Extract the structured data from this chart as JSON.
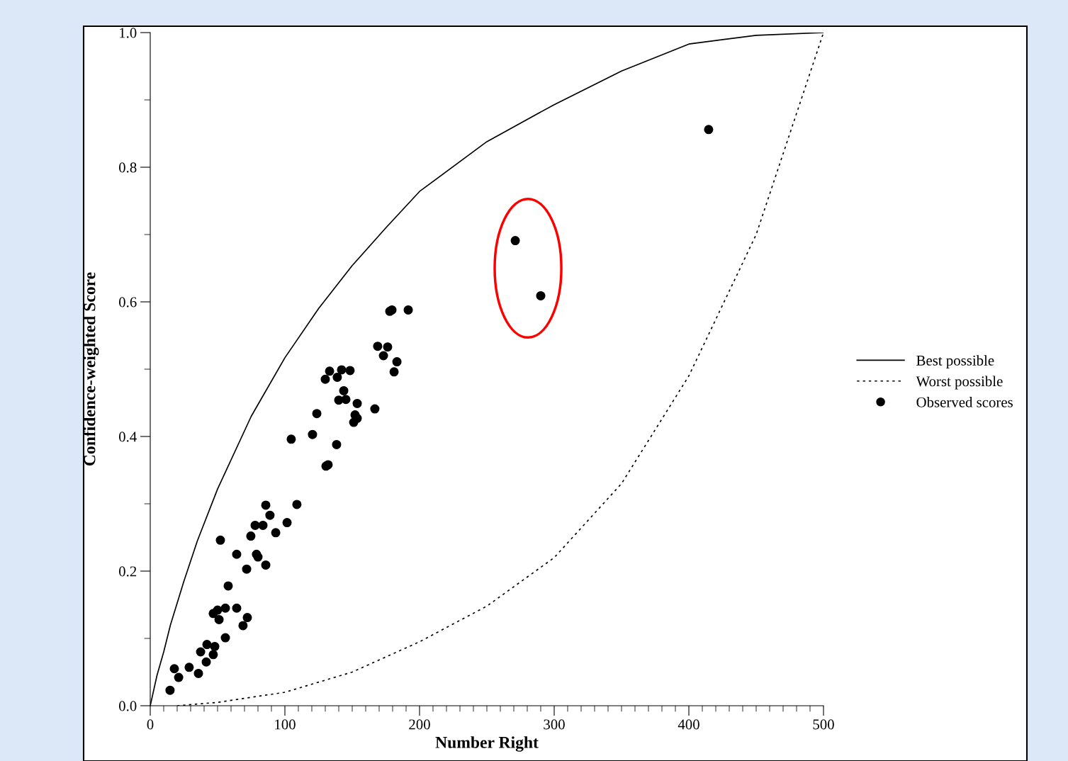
{
  "chart_data": {
    "type": "scatter",
    "xlabel": "Number Right",
    "ylabel": "Confidence-weighted Score",
    "xlim": [
      0,
      500
    ],
    "ylim": [
      0,
      1.0
    ],
    "xticks": [
      0,
      100,
      200,
      300,
      400,
      500
    ],
    "yticks": [
      {
        "value": 0,
        "label": "0.0"
      },
      {
        "value": 0.2,
        "label": "0.2"
      },
      {
        "value": 0.4,
        "label": "0.4"
      },
      {
        "value": 0.6,
        "label": "0.6"
      },
      {
        "value": 0.8,
        "label": "0.8"
      },
      {
        "value": 1.0,
        "label": "1.0"
      }
    ],
    "grid": false,
    "legend": "right",
    "series": [
      {
        "name": "Best possible",
        "type": "line",
        "color": "#000000",
        "line_style": "solid",
        "marker": "none",
        "x": [
          0,
          5,
          10,
          15,
          25,
          35,
          50,
          75,
          100,
          125,
          150,
          175,
          200,
          250,
          300,
          350,
          400,
          450,
          500
        ],
        "values": [
          0,
          0.045,
          0.08,
          0.12,
          0.185,
          0.245,
          0.322,
          0.43,
          0.517,
          0.59,
          0.654,
          0.71,
          0.764,
          0.838,
          0.893,
          0.943,
          0.983,
          0.996,
          1.0
        ]
      },
      {
        "name": "Worst possible",
        "type": "line",
        "color": "#000000",
        "line_style": "dotted",
        "marker": "none",
        "x": [
          20,
          50,
          100,
          150,
          200,
          250,
          300,
          350,
          400,
          450,
          500
        ],
        "values": [
          0,
          0.005,
          0.02,
          0.05,
          0.095,
          0.148,
          0.22,
          0.33,
          0.49,
          0.7,
          1.0
        ]
      },
      {
        "name": "Observed scores",
        "color": "#000000",
        "marker": "circle",
        "x": [
          14.7,
          17.9,
          21.1,
          28.9,
          35.8,
          37.4,
          41.6,
          42.1,
          46.8,
          47.9,
          46.8,
          50.0,
          51.1,
          52.1,
          55.8,
          55.8,
          57.9,
          64.2,
          64.2,
          68.9,
          71.6,
          72.1,
          74.7,
          77.9,
          78.9,
          80.0,
          83.7,
          85.8,
          85.8,
          88.9,
          93.2,
          101.6,
          104.7,
          108.9,
          120.5,
          123.7,
          130.0,
          130.5,
          132.1,
          133.2,
          138.4,
          138.9,
          140.0,
          142.1,
          143.7,
          145.3,
          148.4,
          151.1,
          152.1,
          153.7,
          153.7,
          166.8,
          168.9,
          173.2,
          176.3,
          177.9,
          179.5,
          181.1,
          183.2,
          191.6,
          271.1,
          290.0,
          414.7
        ],
        "values": [
          0.023,
          0.055,
          0.042,
          0.057,
          0.048,
          0.08,
          0.065,
          0.091,
          0.076,
          0.088,
          0.137,
          0.142,
          0.128,
          0.246,
          0.101,
          0.145,
          0.178,
          0.225,
          0.145,
          0.119,
          0.203,
          0.131,
          0.252,
          0.268,
          0.225,
          0.221,
          0.268,
          0.209,
          0.298,
          0.283,
          0.257,
          0.272,
          0.396,
          0.299,
          0.403,
          0.434,
          0.485,
          0.356,
          0.358,
          0.497,
          0.388,
          0.488,
          0.454,
          0.499,
          0.468,
          0.455,
          0.498,
          0.421,
          0.432,
          0.449,
          0.427,
          0.441,
          0.534,
          0.52,
          0.533,
          0.586,
          0.588,
          0.496,
          0.511,
          0.588,
          0.691,
          0.609,
          0.856
        ]
      }
    ]
  }
}
